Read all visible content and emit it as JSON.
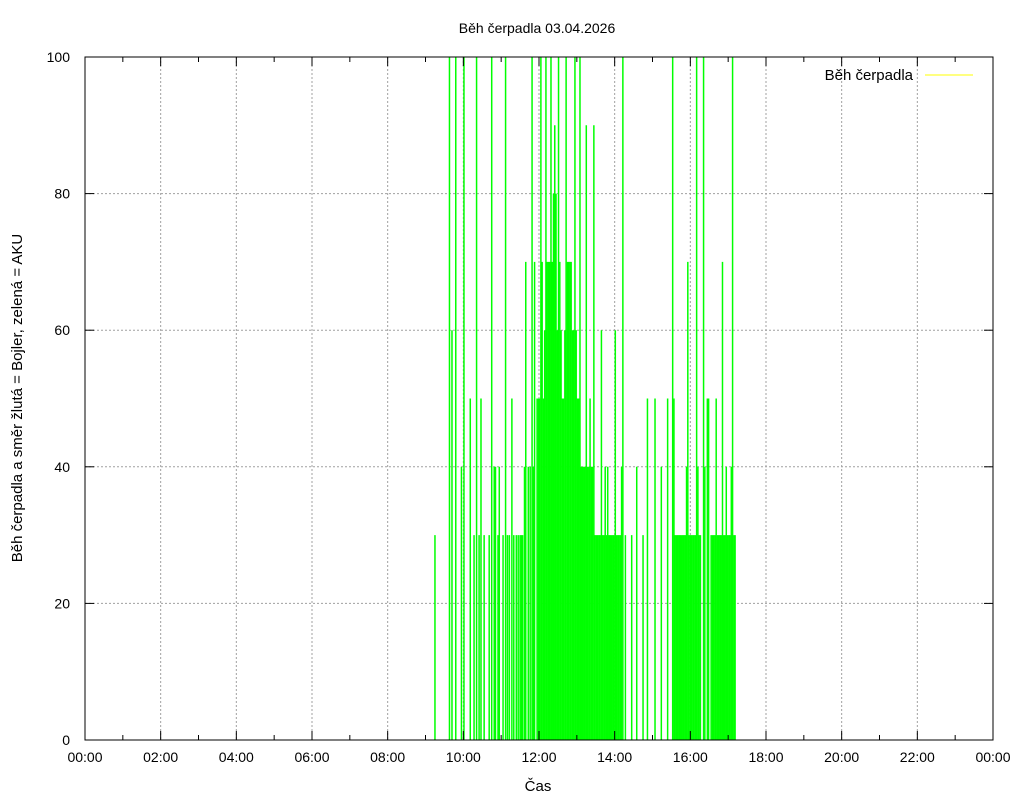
{
  "chart_data": {
    "type": "bar",
    "title": "Běh čerpadla 03.04.2026",
    "xlabel": "Čas",
    "ylabel": "Běh čerpadla a směr žlutá = Bojler, zelená = AKU",
    "xlim": [
      0,
      1440
    ],
    "ylim": [
      0,
      100
    ],
    "x_ticks": [
      "00:00",
      "02:00",
      "04:00",
      "06:00",
      "08:00",
      "10:00",
      "12:00",
      "14:00",
      "16:00",
      "18:00",
      "20:00",
      "22:00",
      "00:00"
    ],
    "y_ticks": [
      "0",
      "20",
      "40",
      "60",
      "80",
      "100"
    ],
    "grid": true,
    "legend": {
      "placement": "top-right"
    },
    "series": [
      {
        "name": "Běh čerpadla",
        "legend_color": "#ffff00",
        "color": "#00ff00",
        "points": [
          [
            555,
            30
          ],
          [
            578,
            100
          ],
          [
            582,
            60
          ],
          [
            588,
            100
          ],
          [
            597,
            40
          ],
          [
            601,
            100
          ],
          [
            611,
            50
          ],
          [
            617,
            30
          ],
          [
            621,
            100
          ],
          [
            625,
            30
          ],
          [
            628,
            50
          ],
          [
            633,
            30
          ],
          [
            641,
            30
          ],
          [
            645,
            100
          ],
          [
            649,
            40
          ],
          [
            651,
            40
          ],
          [
            655,
            30
          ],
          [
            657,
            40
          ],
          [
            663,
            30
          ],
          [
            667,
            100
          ],
          [
            670,
            30
          ],
          [
            673,
            30
          ],
          [
            677,
            50
          ],
          [
            680,
            30
          ],
          [
            684,
            30
          ],
          [
            687,
            30
          ],
          [
            690,
            30
          ],
          [
            692,
            30
          ],
          [
            694,
            30
          ],
          [
            697,
            40
          ],
          [
            699,
            70
          ],
          [
            703,
            40
          ],
          [
            706,
            40
          ],
          [
            709,
            100
          ],
          [
            711,
            40
          ],
          [
            713,
            70
          ],
          [
            717,
            50
          ],
          [
            719,
            50
          ],
          [
            721,
            50
          ],
          [
            723,
            100
          ],
          [
            725,
            70
          ],
          [
            727,
            50
          ],
          [
            729,
            60
          ],
          [
            731,
            100
          ],
          [
            733,
            70
          ],
          [
            735,
            70
          ],
          [
            737,
            70
          ],
          [
            739,
            100
          ],
          [
            741,
            70
          ],
          [
            743,
            80
          ],
          [
            745,
            90
          ],
          [
            747,
            80
          ],
          [
            749,
            60
          ],
          [
            751,
            100
          ],
          [
            753,
            70
          ],
          [
            755,
            60
          ],
          [
            757,
            50
          ],
          [
            759,
            50
          ],
          [
            761,
            60
          ],
          [
            763,
            100
          ],
          [
            765,
            70
          ],
          [
            767,
            70
          ],
          [
            769,
            70
          ],
          [
            771,
            70
          ],
          [
            773,
            60
          ],
          [
            775,
            60
          ],
          [
            777,
            100
          ],
          [
            779,
            60
          ],
          [
            781,
            50
          ],
          [
            783,
            50
          ],
          [
            785,
            100
          ],
          [
            787,
            40
          ],
          [
            789,
            40
          ],
          [
            791,
            40
          ],
          [
            793,
            40
          ],
          [
            795,
            90
          ],
          [
            797,
            40
          ],
          [
            799,
            40
          ],
          [
            801,
            50
          ],
          [
            803,
            40
          ],
          [
            805,
            40
          ],
          [
            807,
            90
          ],
          [
            809,
            30
          ],
          [
            811,
            30
          ],
          [
            813,
            30
          ],
          [
            815,
            30
          ],
          [
            817,
            30
          ],
          [
            819,
            60
          ],
          [
            821,
            30
          ],
          [
            823,
            30
          ],
          [
            825,
            40
          ],
          [
            827,
            30
          ],
          [
            829,
            40
          ],
          [
            831,
            30
          ],
          [
            833,
            30
          ],
          [
            835,
            30
          ],
          [
            837,
            30
          ],
          [
            839,
            30
          ],
          [
            841,
            60
          ],
          [
            843,
            30
          ],
          [
            845,
            30
          ],
          [
            847,
            30
          ],
          [
            849,
            30
          ],
          [
            851,
            40
          ],
          [
            853,
            100
          ],
          [
            857,
            30
          ],
          [
            867,
            30
          ],
          [
            875,
            40
          ],
          [
            885,
            30
          ],
          [
            892,
            50
          ],
          [
            904,
            50
          ],
          [
            914,
            40
          ],
          [
            924,
            50
          ],
          [
            932,
            100
          ],
          [
            934,
            50
          ],
          [
            936,
            30
          ],
          [
            938,
            30
          ],
          [
            940,
            30
          ],
          [
            942,
            30
          ],
          [
            944,
            30
          ],
          [
            946,
            30
          ],
          [
            948,
            30
          ],
          [
            950,
            30
          ],
          [
            952,
            30
          ],
          [
            954,
            40
          ],
          [
            956,
            70
          ],
          [
            958,
            30
          ],
          [
            960,
            30
          ],
          [
            962,
            30
          ],
          [
            964,
            30
          ],
          [
            966,
            30
          ],
          [
            968,
            30
          ],
          [
            970,
            100
          ],
          [
            972,
            40
          ],
          [
            974,
            30
          ],
          [
            976,
            30
          ],
          [
            981,
            100
          ],
          [
            983,
            40
          ],
          [
            987,
            50
          ],
          [
            989,
            50
          ],
          [
            993,
            30
          ],
          [
            995,
            30
          ],
          [
            997,
            30
          ],
          [
            999,
            30
          ],
          [
            1001,
            50
          ],
          [
            1003,
            30
          ],
          [
            1005,
            30
          ],
          [
            1007,
            30
          ],
          [
            1009,
            30
          ],
          [
            1011,
            70
          ],
          [
            1013,
            30
          ],
          [
            1015,
            30
          ],
          [
            1017,
            40
          ],
          [
            1019,
            30
          ],
          [
            1021,
            30
          ],
          [
            1023,
            30
          ],
          [
            1025,
            40
          ],
          [
            1027,
            100
          ],
          [
            1029,
            30
          ],
          [
            1031,
            30
          ]
        ]
      }
    ]
  }
}
